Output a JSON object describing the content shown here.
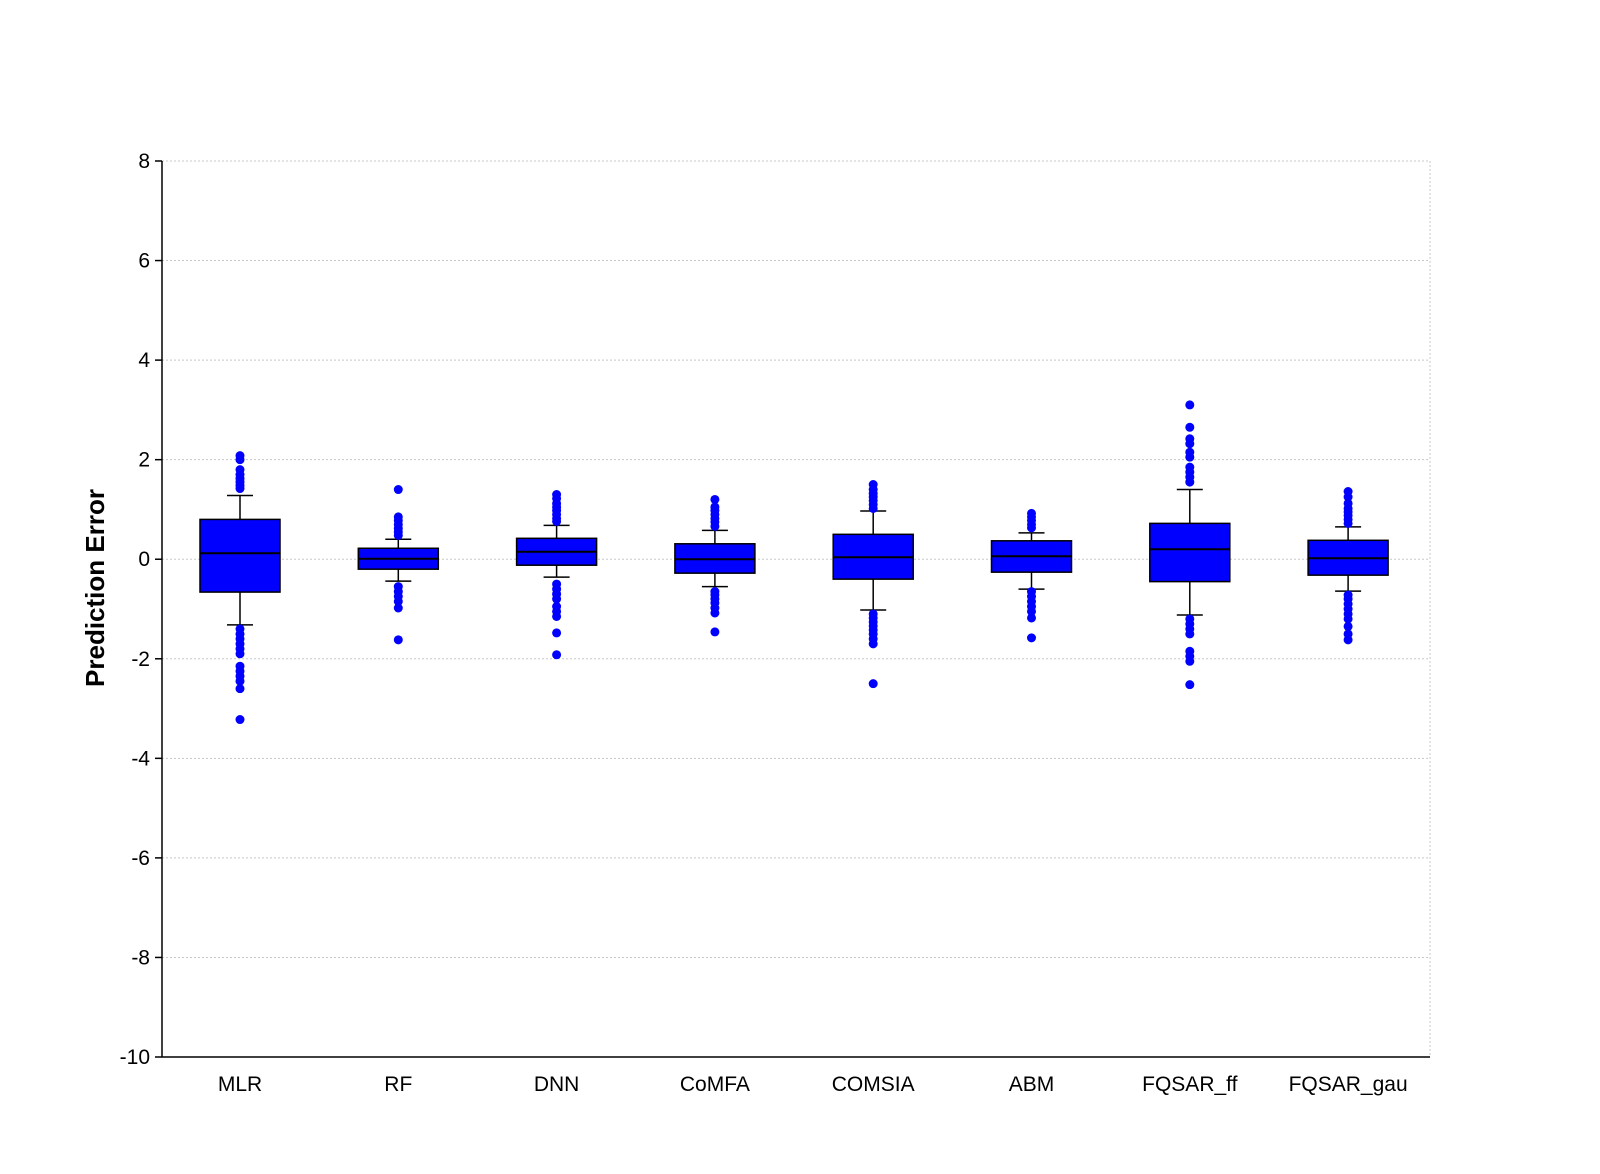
{
  "chart_data": {
    "type": "box",
    "title": "",
    "xlabel": "",
    "ylabel": "Prediction Error",
    "ylim": [
      -10,
      8
    ],
    "yticks": [
      8,
      6,
      4,
      2,
      0,
      -2,
      -4,
      -6,
      -8,
      -10
    ],
    "grid": true,
    "legend": "none",
    "box_color": "#0000ff",
    "outlier_color": "#0000ff",
    "categories": [
      "MLR",
      "RF",
      "DNN",
      "CoMFA",
      "COMSIA",
      "ABM",
      "FQSAR_ff",
      "FQSAR_gau"
    ],
    "series": [
      {
        "whisker_low": -1.32,
        "q1": -0.66,
        "median": 0.12,
        "q3": 0.8,
        "whisker_high": 1.28,
        "outliers": [
          2.08,
          2.0,
          1.8,
          1.7,
          1.62,
          1.55,
          1.48,
          1.42,
          -1.4,
          -1.5,
          -1.6,
          -1.7,
          -1.8,
          -1.9,
          -2.15,
          -2.25,
          -2.35,
          -2.45,
          -2.6,
          -3.22
        ]
      },
      {
        "whisker_low": -0.44,
        "q1": -0.2,
        "median": 0.01,
        "q3": 0.22,
        "whisker_high": 0.4,
        "outliers": [
          1.4,
          0.85,
          0.78,
          0.7,
          0.62,
          0.55,
          0.48,
          -0.55,
          -0.65,
          -0.75,
          -0.85,
          -0.98,
          -1.62
        ]
      },
      {
        "whisker_low": -0.36,
        "q1": -0.12,
        "median": 0.15,
        "q3": 0.42,
        "whisker_high": 0.68,
        "outliers": [
          1.3,
          1.22,
          1.12,
          1.05,
          0.98,
          0.9,
          0.82,
          0.76,
          -0.5,
          -0.6,
          -0.7,
          -0.8,
          -0.95,
          -1.05,
          -1.15,
          -1.48,
          -1.92
        ]
      },
      {
        "whisker_low": -0.55,
        "q1": -0.28,
        "median": 0.0,
        "q3": 0.31,
        "whisker_high": 0.58,
        "outliers": [
          1.2,
          1.05,
          0.98,
          0.9,
          0.82,
          0.75,
          0.66,
          -0.65,
          -0.72,
          -0.8,
          -0.88,
          -0.98,
          -1.08,
          -1.46
        ]
      },
      {
        "whisker_low": -1.02,
        "q1": -0.4,
        "median": 0.04,
        "q3": 0.5,
        "whisker_high": 0.97,
        "outliers": [
          1.5,
          1.4,
          1.32,
          1.25,
          1.18,
          1.1,
          1.02,
          -1.1,
          -1.18,
          -1.26,
          -1.34,
          -1.42,
          -1.5,
          -1.6,
          -1.7,
          -2.5
        ]
      },
      {
        "whisker_low": -0.6,
        "q1": -0.26,
        "median": 0.06,
        "q3": 0.37,
        "whisker_high": 0.53,
        "outliers": [
          0.92,
          0.85,
          0.78,
          0.7,
          0.63,
          -0.65,
          -0.75,
          -0.85,
          -0.95,
          -1.05,
          -1.18,
          -1.58
        ]
      },
      {
        "whisker_low": -1.12,
        "q1": -0.45,
        "median": 0.2,
        "q3": 0.72,
        "whisker_high": 1.4,
        "outliers": [
          3.1,
          2.65,
          2.42,
          2.32,
          2.15,
          2.05,
          1.85,
          1.75,
          1.65,
          1.55,
          -1.2,
          -1.3,
          -1.4,
          -1.5,
          -1.85,
          -1.95,
          -2.05,
          -2.52
        ]
      },
      {
        "whisker_low": -0.64,
        "q1": -0.32,
        "median": 0.02,
        "q3": 0.38,
        "whisker_high": 0.65,
        "outliers": [
          1.36,
          1.25,
          1.12,
          1.02,
          0.95,
          0.88,
          0.8,
          0.72,
          -0.72,
          -0.8,
          -0.9,
          -1.0,
          -1.1,
          -1.2,
          -1.35,
          -1.5,
          -1.62
        ]
      }
    ]
  }
}
